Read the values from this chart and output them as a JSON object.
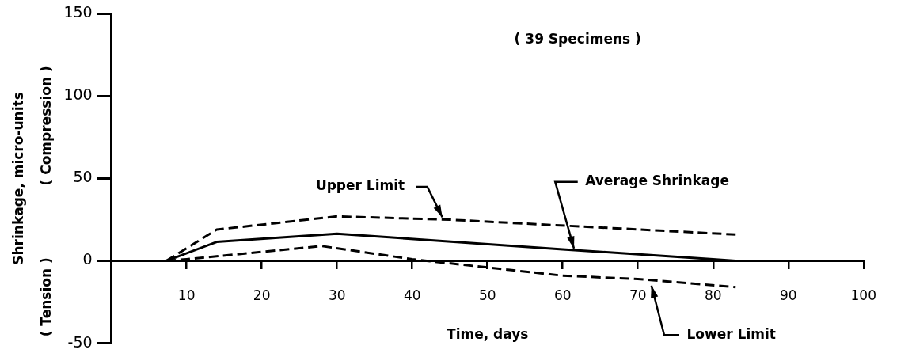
{
  "chart_data": {
    "type": "line",
    "xlabel": "Time, days",
    "ylabel": "Shrinkage, micro-units",
    "annotations": [
      "( 39 Specimens )",
      "( Compression )",
      "( Tension )"
    ],
    "series": [
      {
        "name": "Upper Limit",
        "color": "#000000",
        "line_style": "dashed",
        "x": [
          7.3,
          14,
          30,
          45,
          83
        ],
        "values": [
          0,
          19,
          27,
          25,
          16
        ]
      },
      {
        "name": "Average Shrinkage",
        "color": "#000000",
        "line_style": "solid",
        "x": [
          7.3,
          14,
          30,
          60,
          80,
          83
        ],
        "values": [
          0,
          11.5,
          16.5,
          7,
          1,
          0
        ]
      },
      {
        "name": "Lower Limit",
        "color": "#000000",
        "line_style": "dashed",
        "x": [
          7.3,
          10,
          28,
          40,
          50,
          60,
          70,
          83
        ],
        "values": [
          0,
          1,
          9,
          1,
          -4,
          -9,
          -11,
          -16
        ]
      }
    ],
    "xlim": [
      0,
      100
    ],
    "xticks": [
      10,
      20,
      30,
      40,
      50,
      60,
      70,
      80,
      90,
      100
    ],
    "ylim": [
      -50,
      150
    ],
    "yticks": [
      -50,
      0,
      50,
      100,
      150
    ],
    "grid": false,
    "legend": false,
    "marker": "none"
  }
}
